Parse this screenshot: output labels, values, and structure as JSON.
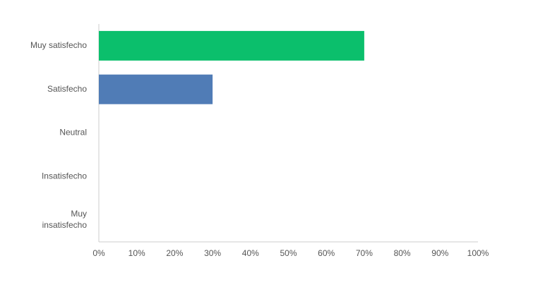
{
  "chart_data": {
    "type": "hbar",
    "categories": [
      "Muy satisfecho",
      "Satisfecho",
      "Neutral",
      "Insatisfecho",
      "Muy insatisfecho"
    ],
    "values": [
      70,
      30,
      0,
      0,
      0
    ],
    "colors": [
      "#0bbf6c",
      "#507cb6",
      "#0bbf6c",
      "#0bbf6c",
      "#0bbf6c"
    ],
    "xlim": [
      0,
      100
    ],
    "xticks": [
      {
        "value": 0,
        "label": "0%"
      },
      {
        "value": 10,
        "label": "10%"
      },
      {
        "value": 20,
        "label": "20%"
      },
      {
        "value": 30,
        "label": "30%"
      },
      {
        "value": 40,
        "label": "40%"
      },
      {
        "value": 50,
        "label": "50%"
      },
      {
        "value": 60,
        "label": "60%"
      },
      {
        "value": 70,
        "label": "70%"
      },
      {
        "value": 80,
        "label": "80%"
      },
      {
        "value": 90,
        "label": "90%"
      },
      {
        "value": 100,
        "label": "100%"
      }
    ],
    "grid": false
  }
}
